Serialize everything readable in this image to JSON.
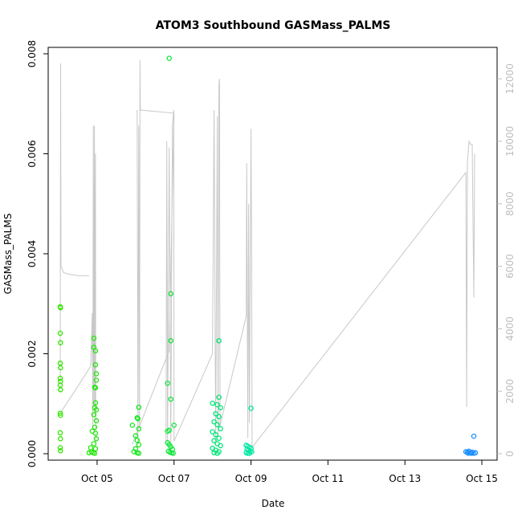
{
  "chart_data": {
    "type": "scatter",
    "title": "ATOM3 Southbound GASMass_PALMS",
    "xlabel": "Date",
    "ylabel": "GASMass_PALMS",
    "x_type": "date",
    "xlim": [
      "2017-10-03T23:00",
      "2017-10-15T04:00"
    ],
    "ylim": [
      0,
      0.008
    ],
    "y2lim": [
      0,
      12800
    ],
    "x_ticks": [
      {
        "value": "2017-10-05",
        "label": "Oct 05"
      },
      {
        "value": "2017-10-07",
        "label": "Oct 07"
      },
      {
        "value": "2017-10-09",
        "label": "Oct 09"
      },
      {
        "value": "2017-10-11",
        "label": "Oct 11"
      },
      {
        "value": "2017-10-13",
        "label": "Oct 13"
      },
      {
        "value": "2017-10-15",
        "label": "Oct 15"
      }
    ],
    "y_ticks": [
      {
        "value": 0,
        "label": "0.000"
      },
      {
        "value": 0.002,
        "label": "0.002"
      },
      {
        "value": 0.004,
        "label": "0.004"
      },
      {
        "value": 0.006,
        "label": "0.006"
      },
      {
        "value": 0.008,
        "label": "0.008"
      }
    ],
    "y2_ticks": [
      {
        "value": 0,
        "label": "0"
      },
      {
        "value": 2000,
        "label": "2000"
      },
      {
        "value": 4000,
        "label": "4000"
      },
      {
        "value": 6000,
        "label": "6000"
      },
      {
        "value": 8000,
        "label": "8000"
      },
      {
        "value": 10000,
        "label": "10000"
      },
      {
        "value": 12000,
        "label": "12000"
      }
    ],
    "grid": false,
    "colors": {
      "flight_track": "#c8c8c8",
      "right_axis": "#bdbdbd",
      "flight_1": "#33e600",
      "flight_2": "#22e60a",
      "flight_3": "#16e61c",
      "flight_4": "#10e63a",
      "flight_5": "#00e678",
      "flight_6": "#00e6a0",
      "flight_7": "#1e90ff"
    },
    "altitude_series": [
      {
        "flight": 1,
        "points": [
          [
            "2017-10-04T01:00",
            2000
          ],
          [
            "2017-10-04T01:10",
            9000
          ],
          [
            "2017-10-04T01:15",
            12500
          ],
          [
            "2017-10-04T01:20",
            9500
          ],
          [
            "2017-10-04T01:30",
            6000
          ],
          [
            "2017-10-04T03:00",
            5800
          ],
          [
            "2017-10-04T06:00",
            5750
          ],
          [
            "2017-10-04T12:00",
            5700
          ],
          [
            "2017-10-04T19:00",
            5700
          ]
        ]
      },
      {
        "flight": 2,
        "points": [
          [
            "2017-10-04T01:00",
            1300
          ],
          [
            "2017-10-04T10:00",
            2000
          ],
          [
            "2017-10-04T20:00",
            2800
          ],
          [
            "2017-10-04T21:00",
            4500
          ],
          [
            "2017-10-04T21:20",
            800
          ],
          [
            "2017-10-04T21:40",
            10500
          ],
          [
            "2017-10-04T22:00",
            1500
          ],
          [
            "2017-10-04T22:20",
            10500
          ],
          [
            "2017-10-04T22:40",
            1200
          ],
          [
            "2017-10-04T23:00",
            9600
          ],
          [
            "2017-10-04T23:10",
            300
          ]
        ]
      },
      {
        "flight": 3,
        "points": [
          [
            "2017-10-06T01:00",
            11000
          ],
          [
            "2017-10-06T01:30",
            300
          ],
          [
            "2017-10-06T02:00",
            10500
          ],
          [
            "2017-10-06T02:30",
            800
          ],
          [
            "2017-10-06T02:45",
            12600
          ],
          [
            "2017-10-06T03:00",
            11000
          ],
          [
            "2017-10-07T00:00",
            10900
          ],
          [
            "2017-10-06T21:00",
            3300
          ],
          [
            "2017-10-05T22:00",
            300
          ]
        ]
      },
      {
        "flight": 4,
        "points": [
          [
            "2017-10-06T19:00",
            300
          ],
          [
            "2017-10-06T19:30",
            10000
          ],
          [
            "2017-10-06T20:00",
            300
          ],
          [
            "2017-10-06T21:00",
            9800
          ],
          [
            "2017-10-06T22:00",
            300
          ],
          [
            "2017-10-06T23:00",
            10500
          ],
          [
            "2017-10-06T23:50",
            11000
          ],
          [
            "2017-10-07T00:00",
            400
          ],
          [
            "2017-10-08T00:00",
            3200
          ]
        ]
      },
      {
        "flight": 5,
        "points": [
          [
            "2017-10-08T00:00",
            3200
          ],
          [
            "2017-10-08T01:00",
            11000
          ],
          [
            "2017-10-08T02:00",
            300
          ],
          [
            "2017-10-08T03:00",
            10800
          ],
          [
            "2017-10-08T03:30",
            600
          ],
          [
            "2017-10-08T04:00",
            11800
          ],
          [
            "2017-10-08T04:20",
            12000
          ],
          [
            "2017-10-08T04:40",
            900
          ]
        ]
      },
      {
        "flight": 6,
        "points": [
          [
            "2017-10-08T04:40",
            900
          ],
          [
            "2017-10-08T21:00",
            4400
          ],
          [
            "2017-10-08T21:20",
            9300
          ],
          [
            "2017-10-08T22:00",
            500
          ],
          [
            "2017-10-08T22:30",
            8000
          ],
          [
            "2017-10-08T23:00",
            1000
          ],
          [
            "2017-10-09T00:00",
            10400
          ],
          [
            "2017-10-09T00:30",
            5000
          ],
          [
            "2017-10-09T00:40",
            200
          ]
        ]
      },
      {
        "flight": 7,
        "points": [
          [
            "2017-10-09T00:40",
            200
          ],
          [
            "2017-10-14T14:00",
            9000
          ],
          [
            "2017-10-14T14:30",
            1500
          ],
          [
            "2017-10-14T15:00",
            9300
          ],
          [
            "2017-10-14T16:00",
            10000
          ],
          [
            "2017-10-14T17:00",
            9900
          ],
          [
            "2017-10-14T18:00",
            9900
          ],
          [
            "2017-10-14T19:00",
            5000
          ],
          [
            "2017-10-14T19:30",
            9600
          ]
        ]
      }
    ],
    "gasmass_series": [
      {
        "flight": 1,
        "color_key": "flight_1",
        "points": [
          [
            "2017-10-04T01:00",
            0.00294
          ],
          [
            "2017-10-04T01:10",
            0.00292
          ],
          [
            "2017-10-04T01:00",
            0.00241
          ],
          [
            "2017-10-04T01:10",
            0.00222
          ],
          [
            "2017-10-04T01:00",
            0.00181
          ],
          [
            "2017-10-04T01:10",
            0.00172
          ],
          [
            "2017-10-04T01:00",
            0.00151
          ],
          [
            "2017-10-04T01:10",
            0.00145
          ],
          [
            "2017-10-04T01:00",
            0.00137
          ],
          [
            "2017-10-04T01:10",
            0.00128
          ],
          [
            "2017-10-04T01:00",
            0.00081
          ],
          [
            "2017-10-04T01:10",
            0.00077
          ],
          [
            "2017-10-04T01:00",
            0.00042
          ],
          [
            "2017-10-04T01:10",
            0.0003
          ],
          [
            "2017-10-04T01:00",
            0.00012
          ],
          [
            "2017-10-04T01:10",
            6e-05
          ]
        ]
      },
      {
        "flight": 2,
        "color_key": "flight_2",
        "points": [
          [
            "2017-10-04T19:00",
            2e-05
          ],
          [
            "2017-10-04T20:00",
            0.00012
          ],
          [
            "2017-10-04T21:00",
            0.00045
          ],
          [
            "2017-10-04T22:00",
            0.00231
          ],
          [
            "2017-10-04T22:00",
            0.00213
          ],
          [
            "2017-10-04T23:00",
            0.00206
          ],
          [
            "2017-10-04T23:00",
            0.00178
          ],
          [
            "2017-10-04T23:30",
            0.0016
          ],
          [
            "2017-10-04T23:30",
            0.00147
          ],
          [
            "2017-10-04T22:30",
            0.00133
          ],
          [
            "2017-10-04T23:00",
            0.00132
          ],
          [
            "2017-10-04T23:00",
            0.00102
          ],
          [
            "2017-10-04T22:30",
            0.00092
          ],
          [
            "2017-10-04T23:30",
            0.00088
          ],
          [
            "2017-10-04T22:00",
            0.00078
          ],
          [
            "2017-10-04T23:30",
            0.00066
          ],
          [
            "2017-10-04T22:30",
            0.00053
          ],
          [
            "2017-10-04T23:00",
            0.00041
          ],
          [
            "2017-10-04T23:30",
            0.0003
          ],
          [
            "2017-10-04T22:00",
            0.0002
          ],
          [
            "2017-10-04T23:00",
            0.0001
          ],
          [
            "2017-10-04T20:30",
            4e-05
          ],
          [
            "2017-10-04T21:30",
            2e-05
          ],
          [
            "2017-10-04T22:30",
            1e-05
          ]
        ]
      },
      {
        "flight": 3,
        "color_key": "flight_3",
        "points": [
          [
            "2017-10-05T22:00",
            0.00057
          ],
          [
            "2017-10-06T02:00",
            0.00093
          ],
          [
            "2017-10-06T01:00",
            0.00072
          ],
          [
            "2017-10-06T01:30",
            0.0007
          ],
          [
            "2017-10-06T02:00",
            0.0005
          ],
          [
            "2017-10-06T00:00",
            0.00036
          ],
          [
            "2017-10-06T01:00",
            0.00027
          ],
          [
            "2017-10-06T02:00",
            0.00018
          ],
          [
            "2017-10-06T00:00",
            0.0001
          ],
          [
            "2017-10-05T23:00",
            4e-05
          ],
          [
            "2017-10-06T01:00",
            2e-05
          ],
          [
            "2017-10-06T02:00",
            1e-05
          ]
        ]
      },
      {
        "flight": 4,
        "color_key": "flight_4",
        "points": [
          [
            "2017-10-06T21:00",
            0.00791
          ],
          [
            "2017-10-06T22:00",
            0.0032
          ],
          [
            "2017-10-06T22:00",
            0.00226
          ],
          [
            "2017-10-06T20:00",
            0.00141
          ],
          [
            "2017-10-06T22:00",
            0.00109
          ],
          [
            "2017-10-07T00:00",
            0.00057
          ],
          [
            "2017-10-06T20:00",
            0.00045
          ],
          [
            "2017-10-06T21:00",
            0.00047
          ],
          [
            "2017-10-06T20:00",
            0.00022
          ],
          [
            "2017-10-06T21:00",
            0.00018
          ],
          [
            "2017-10-06T22:00",
            0.00014
          ],
          [
            "2017-10-06T23:00",
            9e-05
          ],
          [
            "2017-10-06T20:30",
            5e-05
          ],
          [
            "2017-10-06T21:30",
            3e-05
          ],
          [
            "2017-10-06T22:30",
            2e-05
          ],
          [
            "2017-10-06T23:30",
            1e-05
          ]
        ]
      },
      {
        "flight": 5,
        "color_key": "flight_5",
        "points": [
          [
            "2017-10-08T04:00",
            0.00226
          ],
          [
            "2017-10-08T04:00",
            0.00113
          ],
          [
            "2017-10-08T00:00",
            0.00101
          ],
          [
            "2017-10-08T03:00",
            0.00098
          ],
          [
            "2017-10-08T05:00",
            0.00092
          ],
          [
            "2017-10-08T02:00",
            0.0008
          ],
          [
            "2017-10-08T04:00",
            0.00074
          ],
          [
            "2017-10-08T01:00",
            0.00064
          ],
          [
            "2017-10-08T03:00",
            0.00058
          ],
          [
            "2017-10-08T05:00",
            0.0005
          ],
          [
            "2017-10-08T00:00",
            0.00044
          ],
          [
            "2017-10-08T02:00",
            0.00038
          ],
          [
            "2017-10-08T04:00",
            0.00031
          ],
          [
            "2017-10-08T01:00",
            0.00026
          ],
          [
            "2017-10-08T03:00",
            0.0002
          ],
          [
            "2017-10-08T05:00",
            0.00016
          ],
          [
            "2017-10-08T00:00",
            0.00011
          ],
          [
            "2017-10-08T02:00",
            7e-05
          ],
          [
            "2017-10-08T04:00",
            4e-05
          ],
          [
            "2017-10-08T01:00",
            2e-05
          ],
          [
            "2017-10-08T03:00",
            1e-05
          ]
        ]
      },
      {
        "flight": 6,
        "color_key": "flight_6",
        "points": [
          [
            "2017-10-09T00:00",
            0.00091
          ],
          [
            "2017-10-08T21:00",
            0.00017
          ],
          [
            "2017-10-08T22:00",
            0.00015
          ],
          [
            "2017-10-08T23:00",
            0.00013
          ],
          [
            "2017-10-09T00:00",
            0.00011
          ],
          [
            "2017-10-08T21:30",
            9e-05
          ],
          [
            "2017-10-08T22:30",
            7e-05
          ],
          [
            "2017-10-08T23:30",
            5e-05
          ],
          [
            "2017-10-09T00:30",
            4e-05
          ],
          [
            "2017-10-08T21:00",
            2e-05
          ],
          [
            "2017-10-08T22:00",
            1e-05
          ],
          [
            "2017-10-08T23:00",
            1e-05
          ]
        ]
      },
      {
        "flight": 7,
        "color_key": "flight_7",
        "points": [
          [
            "2017-10-14T19:00",
            0.00035
          ],
          [
            "2017-10-14T14:00",
            4e-05
          ],
          [
            "2017-10-14T15:00",
            3e-05
          ],
          [
            "2017-10-14T16:00",
            5e-05
          ],
          [
            "2017-10-14T17:00",
            2e-05
          ],
          [
            "2017-10-14T18:00",
            3e-05
          ],
          [
            "2017-10-14T19:00",
            1e-05
          ],
          [
            "2017-10-14T20:00",
            2e-05
          ],
          [
            "2017-10-14T15:30",
            1e-05
          ],
          [
            "2017-10-14T17:30",
            1e-05
          ]
        ]
      }
    ]
  }
}
